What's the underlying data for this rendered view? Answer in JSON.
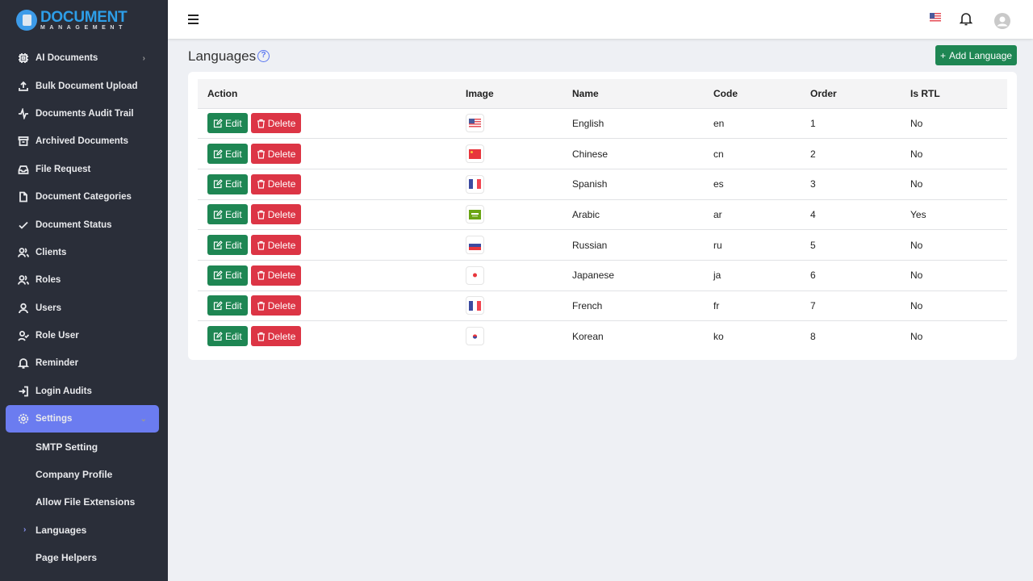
{
  "brand": {
    "line1": "DOCUMENT",
    "line2": "MANAGEMENT"
  },
  "sidebar": {
    "items": [
      {
        "label": "AI Documents",
        "icon": "chip-icon",
        "chevron": true
      },
      {
        "label": "Bulk Document Upload",
        "icon": "upload-icon"
      },
      {
        "label": "Documents Audit Trail",
        "icon": "activity-icon"
      },
      {
        "label": "Archived Documents",
        "icon": "archive-icon"
      },
      {
        "label": "File Request",
        "icon": "inbox-icon"
      },
      {
        "label": "Document Categories",
        "icon": "file-icon"
      },
      {
        "label": "Document Status",
        "icon": "check-icon"
      },
      {
        "label": "Clients",
        "icon": "users-icon"
      },
      {
        "label": "Roles",
        "icon": "users-icon"
      },
      {
        "label": "Users",
        "icon": "user-icon"
      },
      {
        "label": "Role User",
        "icon": "user-check-icon"
      },
      {
        "label": "Reminder",
        "icon": "bell-icon"
      },
      {
        "label": "Login Audits",
        "icon": "login-icon"
      },
      {
        "label": "Settings",
        "icon": "gear-icon",
        "active": true
      }
    ],
    "subitems": [
      {
        "label": "SMTP Setting"
      },
      {
        "label": "Company Profile"
      },
      {
        "label": "Allow File Extensions"
      },
      {
        "label": "Languages",
        "active": true
      },
      {
        "label": "Page Helpers"
      }
    ]
  },
  "page": {
    "title": "Languages",
    "add_label": "Add Language"
  },
  "table": {
    "headers": [
      "Action",
      "Image",
      "Name",
      "Code",
      "Order",
      "Is RTL"
    ],
    "edit_label": "Edit",
    "delete_label": "Delete",
    "rows": [
      {
        "flag": "us",
        "name": "English",
        "code": "en",
        "order": "1",
        "rtl": "No"
      },
      {
        "flag": "cn",
        "name": "Chinese",
        "code": "cn",
        "order": "2",
        "rtl": "No"
      },
      {
        "flag": "fr",
        "name": "Spanish",
        "code": "es",
        "order": "3",
        "rtl": "No"
      },
      {
        "flag": "sa",
        "name": "Arabic",
        "code": "ar",
        "order": "4",
        "rtl": "Yes"
      },
      {
        "flag": "ru",
        "name": "Russian",
        "code": "ru",
        "order": "5",
        "rtl": "No"
      },
      {
        "flag": "jp",
        "name": "Japanese",
        "code": "ja",
        "order": "6",
        "rtl": "No"
      },
      {
        "flag": "fr",
        "name": "French",
        "code": "fr",
        "order": "7",
        "rtl": "No"
      },
      {
        "flag": "kr",
        "name": "Korean",
        "code": "ko",
        "order": "8",
        "rtl": "No"
      }
    ]
  }
}
